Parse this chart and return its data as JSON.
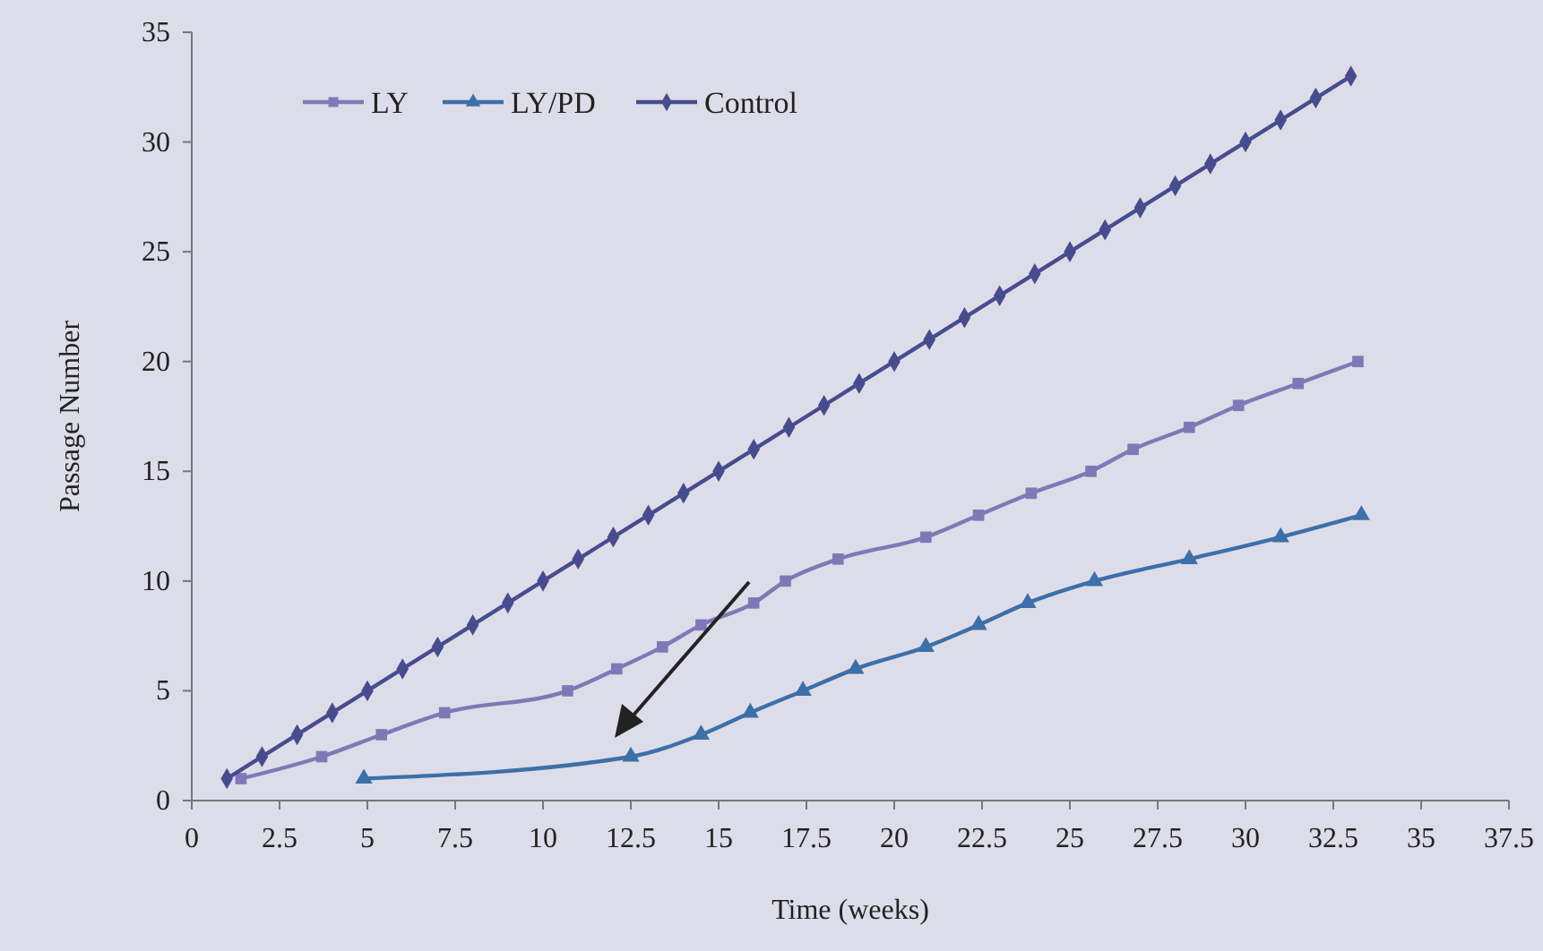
{
  "chart_data": {
    "type": "line",
    "xlabel": "Time (weeks)",
    "ylabel": "Passage Number",
    "xlim": [
      0,
      37.5
    ],
    "xticks": [
      0,
      2.5,
      5,
      7.5,
      10,
      12.5,
      15,
      17.5,
      20,
      22.5,
      25,
      27.5,
      30,
      32.5,
      35,
      37.5
    ],
    "ylim": [
      0,
      35
    ],
    "yticks": [
      0,
      5,
      10,
      15,
      20,
      25,
      30,
      35
    ],
    "grid": false,
    "legend": "top left",
    "series": [
      {
        "name": "LY",
        "color": "#8078b6",
        "marker": "square",
        "x": [
          1.4,
          3.7,
          5.4,
          7.2,
          10.7,
          12.1,
          13.4,
          14.5,
          16,
          16.9,
          18.4,
          20.9,
          22.4,
          23.9,
          25.6,
          26.8,
          28.4,
          29.8,
          31.5,
          33.2
        ],
        "values": [
          1,
          2,
          3,
          4,
          5,
          6,
          7,
          8,
          9,
          10,
          11,
          12,
          13,
          14,
          15,
          16,
          17,
          18,
          19,
          20
        ]
      },
      {
        "name": "LY/PD",
        "color": "#3d6fa8",
        "marker": "triangle",
        "x": [
          4.9,
          12.5,
          14.5,
          15.9,
          17.4,
          18.9,
          20.9,
          22.4,
          23.8,
          25.7,
          28.4,
          31,
          33.3
        ],
        "values": [
          1,
          2,
          3,
          4,
          5,
          6,
          7,
          8,
          9,
          10,
          11,
          12,
          13
        ]
      },
      {
        "name": "Control",
        "color": "#474c8f",
        "marker": "diamond",
        "x": [
          1,
          2,
          3,
          4,
          5,
          6,
          7,
          8,
          9,
          10,
          11,
          12,
          13,
          14,
          15,
          16,
          17,
          18,
          19,
          20,
          21,
          22,
          23,
          24,
          25,
          26,
          27,
          28,
          29,
          30,
          31,
          32,
          33
        ],
        "values": [
          1,
          2,
          3,
          4,
          5,
          6,
          7,
          8,
          9,
          10,
          11,
          12,
          13,
          14,
          15,
          16,
          17,
          18,
          19,
          20,
          21,
          22,
          23,
          24,
          25,
          26,
          27,
          28,
          29,
          30,
          31,
          32,
          33
        ]
      }
    ]
  }
}
